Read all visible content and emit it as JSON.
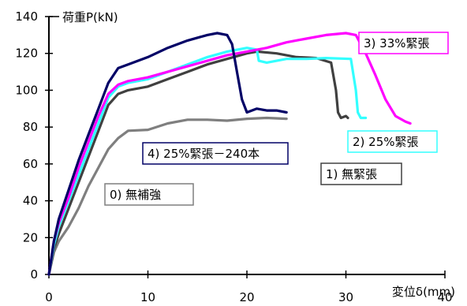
{
  "chart_data": {
    "type": "line",
    "ylabel": "荷重P(kN)",
    "xlabel": "変位δ(mm)",
    "xlim": [
      0,
      40
    ],
    "ylim": [
      0,
      140
    ],
    "xticks": [
      "0",
      "10",
      "20",
      "30",
      "40"
    ],
    "yticks": [
      "0",
      "20",
      "40",
      "60",
      "80",
      "100",
      "120",
      "140"
    ],
    "grid": false,
    "legend": "labels placed on plot",
    "series": [
      {
        "name": "0) 無補強",
        "color": "#7f7f7f",
        "points": [
          [
            0,
            0
          ],
          [
            0.5,
            12
          ],
          [
            1,
            18
          ],
          [
            2,
            26
          ],
          [
            3,
            36
          ],
          [
            4,
            48
          ],
          [
            5,
            58
          ],
          [
            6,
            68
          ],
          [
            7,
            74
          ],
          [
            8,
            78
          ],
          [
            10,
            78.5
          ],
          [
            12,
            82
          ],
          [
            14,
            84
          ],
          [
            16,
            84
          ],
          [
            18,
            83.5
          ],
          [
            20,
            84.5
          ],
          [
            22,
            85
          ],
          [
            24,
            84.5
          ]
        ]
      },
      {
        "name": "1) 無緊張",
        "color": "#404040",
        "points": [
          [
            0,
            0
          ],
          [
            0.5,
            14
          ],
          [
            1,
            22
          ],
          [
            2,
            36
          ],
          [
            3,
            50
          ],
          [
            4,
            64
          ],
          [
            5,
            78
          ],
          [
            6,
            92
          ],
          [
            7,
            98
          ],
          [
            8,
            100
          ],
          [
            10,
            102
          ],
          [
            12,
            106
          ],
          [
            14,
            110
          ],
          [
            16,
            114
          ],
          [
            18,
            117
          ],
          [
            20,
            120
          ],
          [
            21,
            121
          ],
          [
            23,
            120
          ],
          [
            25,
            118
          ],
          [
            27,
            117.5
          ],
          [
            28.5,
            115
          ],
          [
            29,
            100
          ],
          [
            29.2,
            88
          ],
          [
            29.5,
            85
          ],
          [
            30,
            86
          ],
          [
            30.2,
            85
          ]
        ]
      },
      {
        "name": "2) 25%緊張",
        "color": "#33ffff",
        "points": [
          [
            0,
            0
          ],
          [
            0.5,
            16
          ],
          [
            1,
            26
          ],
          [
            2,
            40
          ],
          [
            3,
            54
          ],
          [
            4,
            68
          ],
          [
            5,
            82
          ],
          [
            6,
            96
          ],
          [
            7,
            102
          ],
          [
            8,
            104
          ],
          [
            10,
            106
          ],
          [
            12,
            110
          ],
          [
            14,
            114
          ],
          [
            16,
            118
          ],
          [
            18,
            121
          ],
          [
            20,
            123
          ],
          [
            21,
            122
          ],
          [
            21.2,
            116
          ],
          [
            22,
            115
          ],
          [
            24,
            117
          ],
          [
            26,
            117
          ],
          [
            28,
            117.5
          ],
          [
            30.5,
            117
          ],
          [
            31,
            100
          ],
          [
            31.2,
            88
          ],
          [
            31.5,
            85
          ],
          [
            32,
            85
          ]
        ]
      },
      {
        "name": "3) 33%緊張",
        "color": "#ff00ff",
        "points": [
          [
            0,
            0
          ],
          [
            0.5,
            18
          ],
          [
            1,
            28
          ],
          [
            2,
            42
          ],
          [
            3,
            58
          ],
          [
            4,
            72
          ],
          [
            5,
            86
          ],
          [
            6,
            98
          ],
          [
            7,
            103
          ],
          [
            8,
            105
          ],
          [
            10,
            107
          ],
          [
            12,
            110
          ],
          [
            14,
            113
          ],
          [
            16,
            116
          ],
          [
            18,
            119
          ],
          [
            20,
            121
          ],
          [
            22,
            123
          ],
          [
            24,
            126
          ],
          [
            26,
            128
          ],
          [
            28,
            130
          ],
          [
            30,
            131
          ],
          [
            31,
            130
          ],
          [
            32,
            120
          ],
          [
            33,
            108
          ],
          [
            34,
            95
          ],
          [
            35,
            86
          ],
          [
            36,
            83
          ],
          [
            36.5,
            82
          ]
        ]
      },
      {
        "name": "4) 25%緊張－240本",
        "color": "#000066",
        "points": [
          [
            0,
            0
          ],
          [
            0.5,
            18
          ],
          [
            1,
            30
          ],
          [
            2,
            46
          ],
          [
            3,
            62
          ],
          [
            4,
            76
          ],
          [
            5,
            90
          ],
          [
            6,
            104
          ],
          [
            7,
            112
          ],
          [
            8,
            114
          ],
          [
            10,
            118
          ],
          [
            12,
            123
          ],
          [
            14,
            127
          ],
          [
            16,
            130
          ],
          [
            17,
            131
          ],
          [
            18,
            130
          ],
          [
            18.5,
            125
          ],
          [
            19,
            110
          ],
          [
            19.5,
            95
          ],
          [
            20,
            88
          ],
          [
            21,
            90
          ],
          [
            22,
            89
          ],
          [
            23,
            89
          ],
          [
            24,
            88
          ]
        ]
      }
    ],
    "annotations": [
      "0) 無補強",
      "1) 無緊張",
      "2) 25%緊張",
      "3) 33%緊張",
      "4) 25%緊張－240本"
    ]
  }
}
